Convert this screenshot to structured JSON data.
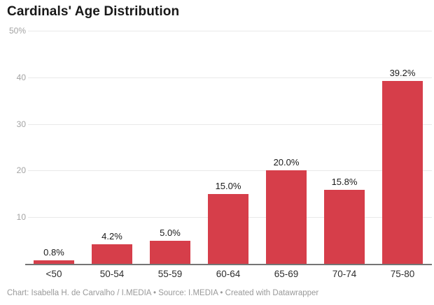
{
  "header": {
    "title": "Cardinals' Age Distribution"
  },
  "footer": {
    "text": "Chart: Isabella H. de Carvalho / I.MEDIA • Source: I.MEDIA • Created with Datawrapper"
  },
  "colors": {
    "bar": "#d63e4a",
    "gridline": "#e9e9e9",
    "baseline": "#757575",
    "ytick_text": "#a3a3a3",
    "xtick_text": "#2e2e2e",
    "value_label_text": "#1a1a1a",
    "title_text": "#181818",
    "footer_text": "#9a9a9a",
    "background": "#ffffff"
  },
  "chart_data": {
    "type": "bar",
    "title": "Cardinals' Age Distribution",
    "categories": [
      "<50",
      "50-54",
      "55-59",
      "60-64",
      "65-69",
      "70-74",
      "75-80"
    ],
    "values": [
      0.8,
      4.2,
      5.0,
      15.0,
      20.0,
      15.8,
      39.2
    ],
    "value_labels": [
      "0.8%",
      "4.2%",
      "5.0%",
      "15.0%",
      "20.0%",
      "15.8%",
      "39.2%"
    ],
    "xlabel": "",
    "ylabel": "",
    "ylim": [
      0,
      50
    ],
    "yticks": [
      {
        "value": 10,
        "label": "10"
      },
      {
        "value": 20,
        "label": "20"
      },
      {
        "value": 30,
        "label": "30"
      },
      {
        "value": 40,
        "label": "40"
      },
      {
        "value": 50,
        "label": "50%"
      }
    ],
    "grid": true,
    "legend": false,
    "attribution": "Chart: Isabella H. de Carvalho / I.MEDIA • Source: I.MEDIA • Created with Datawrapper"
  }
}
